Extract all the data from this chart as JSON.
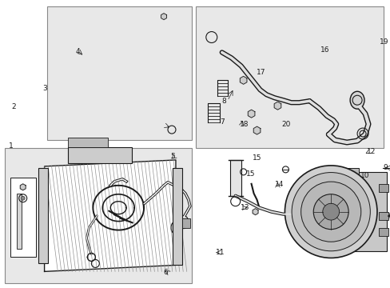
{
  "bg_color": "#ffffff",
  "line_color": "#1a1a1a",
  "box_fill": "#e8e8e8",
  "fig_width": 4.89,
  "fig_height": 3.6,
  "dpi": 100,
  "font_size": 6.5
}
